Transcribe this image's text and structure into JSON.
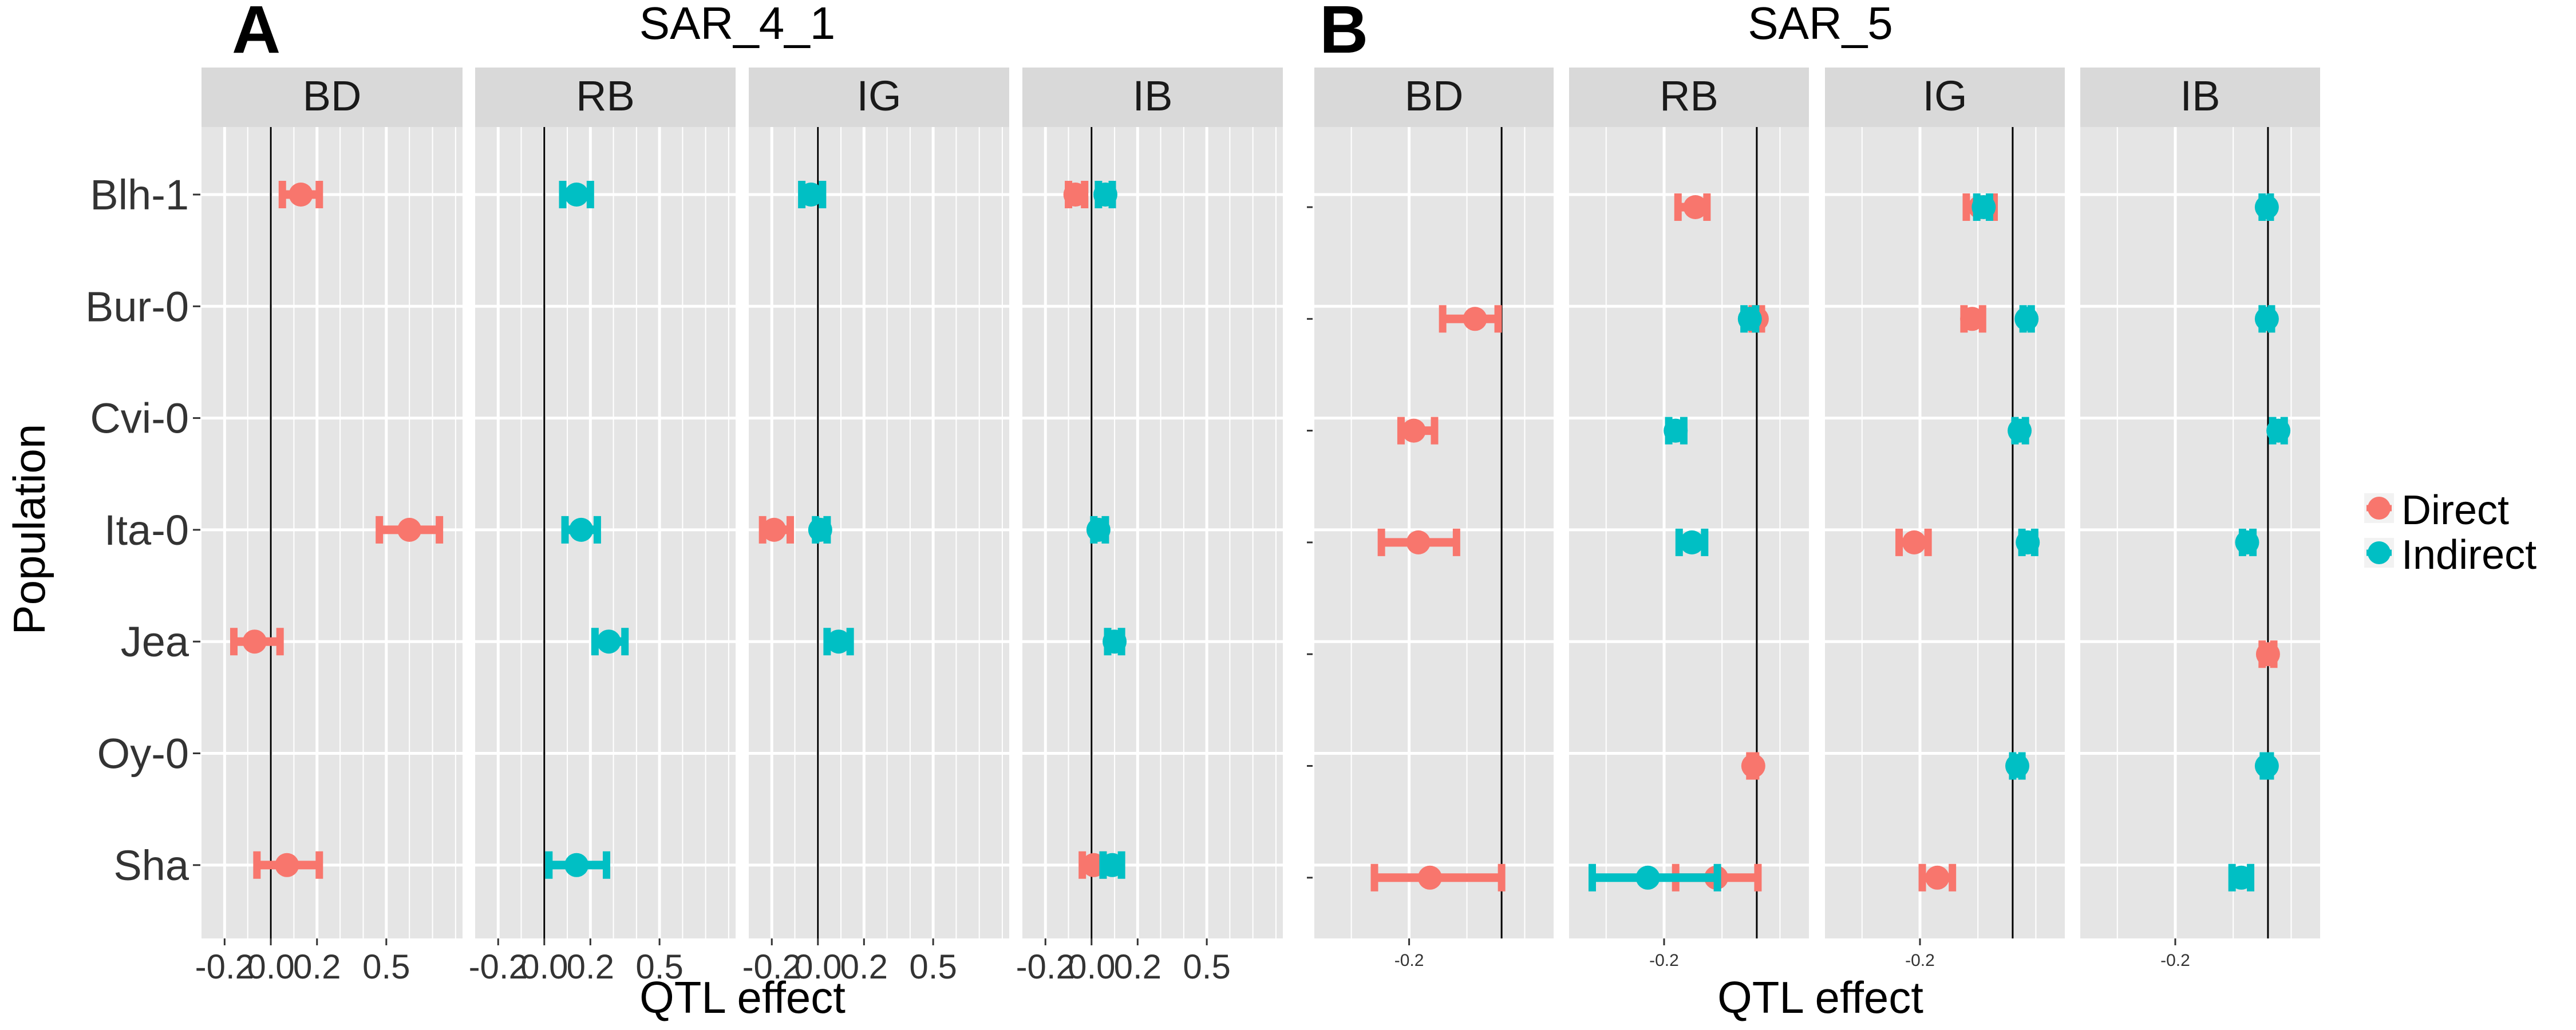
{
  "figure": {
    "ylabel": "Population",
    "populations": [
      "Blh-1",
      "Bur-0",
      "Cvi-0",
      "Ita-0",
      "Jea",
      "Oy-0",
      "Sha"
    ],
    "legend": {
      "position": "right",
      "items": [
        {
          "label": "Direct",
          "color": "#F8766D"
        },
        {
          "label": "Indirect",
          "color": "#00BFC4"
        }
      ]
    },
    "colors": {
      "panel_bg": "#E5E5E5",
      "strip_bg": "#D9D9D9",
      "grid": "#FFFFFF",
      "zero_line": "#000000"
    }
  },
  "chart_data": [
    {
      "type": "scatter",
      "letter": "A",
      "title": "SAR_4_1",
      "xlabel": "QTL effect",
      "xlim": [
        -0.3,
        0.83
      ],
      "xticks": [
        -0.2,
        0.0,
        0.2,
        0.5
      ],
      "xtick_labels": [
        "-0.2",
        "0.0",
        "0.2",
        "0.5"
      ],
      "facets": [
        {
          "name": "BD",
          "points": [
            {
              "population": "Blh-1",
              "type": "Direct",
              "value": 0.13,
              "low": 0.05,
              "high": 0.21
            },
            {
              "population": "Ita-0",
              "type": "Direct",
              "value": 0.6,
              "low": 0.47,
              "high": 0.73
            },
            {
              "population": "Jea",
              "type": "Direct",
              "value": -0.07,
              "low": -0.16,
              "high": 0.04
            },
            {
              "population": "Sha",
              "type": "Direct",
              "value": 0.07,
              "low": -0.06,
              "high": 0.21
            }
          ]
        },
        {
          "name": "RB",
          "points": [
            {
              "population": "Blh-1",
              "type": "Indirect",
              "value": 0.14,
              "low": 0.08,
              "high": 0.2
            },
            {
              "population": "Ita-0",
              "type": "Indirect",
              "value": 0.16,
              "low": 0.09,
              "high": 0.23
            },
            {
              "population": "Jea",
              "type": "Indirect",
              "value": 0.28,
              "low": 0.22,
              "high": 0.35
            },
            {
              "population": "Sha",
              "type": "Indirect",
              "value": 0.14,
              "low": 0.02,
              "high": 0.27
            }
          ]
        },
        {
          "name": "IG",
          "points": [
            {
              "population": "Blh-1",
              "type": "Indirect",
              "value": -0.03,
              "low": -0.07,
              "high": 0.02
            },
            {
              "population": "Ita-0",
              "type": "Direct",
              "value": -0.19,
              "low": -0.24,
              "high": -0.12
            },
            {
              "population": "Ita-0",
              "type": "Indirect",
              "value": 0.01,
              "low": -0.01,
              "high": 0.04
            },
            {
              "population": "Jea",
              "type": "Indirect",
              "value": 0.09,
              "low": 0.04,
              "high": 0.14
            }
          ]
        },
        {
          "name": "IB",
          "points": [
            {
              "population": "Blh-1",
              "type": "Direct",
              "value": -0.07,
              "low": -0.1,
              "high": -0.03
            },
            {
              "population": "Blh-1",
              "type": "Indirect",
              "value": 0.06,
              "low": 0.03,
              "high": 0.09
            },
            {
              "population": "Ita-0",
              "type": "Indirect",
              "value": 0.03,
              "low": 0.01,
              "high": 0.06
            },
            {
              "population": "Jea",
              "type": "Indirect",
              "value": 0.1,
              "low": 0.07,
              "high": 0.13
            },
            {
              "population": "Sha",
              "type": "Direct",
              "value": 0.01,
              "low": -0.04,
              "high": 0.05
            },
            {
              "population": "Sha",
              "type": "Indirect",
              "value": 0.09,
              "low": 0.05,
              "high": 0.13
            }
          ]
        }
      ]
    },
    {
      "type": "scatter",
      "letter": "B",
      "title": "SAR_5",
      "xlabel": "QTL effect",
      "xlim": [
        -0.282,
        -0.075
      ],
      "xticks": [
        -0.2
      ],
      "xtick_labels": [
        "-0.2"
      ],
      "zero": -0.12,
      "facets": [
        {
          "name": "BD",
          "points": [
            {
              "population": "Bur-0",
              "type": "Direct",
              "value": -0.143,
              "low": -0.171,
              "high": -0.123
            },
            {
              "population": "Cvi-0",
              "type": "Direct",
              "value": -0.196,
              "low": -0.207,
              "high": -0.178
            },
            {
              "population": "Ita-0",
              "type": "Direct",
              "value": -0.192,
              "low": -0.224,
              "high": -0.159
            },
            {
              "population": "Sha",
              "type": "Direct",
              "value": -0.182,
              "low": -0.23,
              "high": -0.12
            }
          ]
        },
        {
          "name": "RB",
          "points": [
            {
              "population": "Blh-1",
              "type": "Direct",
              "value": -0.173,
              "low": -0.188,
              "high": -0.163
            },
            {
              "population": "Bur-0",
              "type": "Direct",
              "value": -0.12,
              "low": -0.124,
              "high": -0.116
            },
            {
              "population": "Bur-0",
              "type": "Indirect",
              "value": -0.126,
              "low": -0.131,
              "high": -0.121
            },
            {
              "population": "Cvi-0",
              "type": "Indirect",
              "value": -0.19,
              "low": -0.196,
              "high": -0.183
            },
            {
              "population": "Ita-0",
              "type": "Indirect",
              "value": -0.176,
              "low": -0.187,
              "high": -0.165
            },
            {
              "population": "Oy-0",
              "type": "Direct",
              "value": -0.123,
              "low": -0.126,
              "high": -0.121
            },
            {
              "population": "Sha",
              "type": "Direct",
              "value": -0.155,
              "low": -0.19,
              "high": -0.119
            },
            {
              "population": "Sha",
              "type": "Indirect",
              "value": -0.214,
              "low": -0.262,
              "high": -0.154
            }
          ]
        },
        {
          "name": "IG",
          "points": [
            {
              "population": "Blh-1",
              "type": "Direct",
              "value": -0.148,
              "low": -0.16,
              "high": -0.136
            },
            {
              "population": "Blh-1",
              "type": "Indirect",
              "value": -0.145,
              "low": -0.151,
              "high": -0.14
            },
            {
              "population": "Bur-0",
              "type": "Direct",
              "value": -0.155,
              "low": -0.162,
              "high": -0.146
            },
            {
              "population": "Bur-0",
              "type": "Indirect",
              "value": -0.108,
              "low": -0.111,
              "high": -0.104
            },
            {
              "population": "Cvi-0",
              "type": "Indirect",
              "value": -0.114,
              "low": -0.118,
              "high": -0.109
            },
            {
              "population": "Ita-0",
              "type": "Direct",
              "value": -0.205,
              "low": -0.218,
              "high": -0.193
            },
            {
              "population": "Ita-0",
              "type": "Indirect",
              "value": -0.107,
              "low": -0.112,
              "high": -0.101
            },
            {
              "population": "Oy-0",
              "type": "Indirect",
              "value": -0.116,
              "low": -0.12,
              "high": -0.112
            },
            {
              "population": "Sha",
              "type": "Direct",
              "value": -0.185,
              "low": -0.198,
              "high": -0.172
            }
          ]
        },
        {
          "name": "IB",
          "points": [
            {
              "population": "Blh-1",
              "type": "Indirect",
              "value": -0.121,
              "low": -0.125,
              "high": -0.118
            },
            {
              "population": "Bur-0",
              "type": "Indirect",
              "value": -0.121,
              "low": -0.125,
              "high": -0.117
            },
            {
              "population": "Cvi-0",
              "type": "Indirect",
              "value": -0.111,
              "low": -0.116,
              "high": -0.106
            },
            {
              "population": "Ita-0",
              "type": "Indirect",
              "value": -0.138,
              "low": -0.142,
              "high": -0.133
            },
            {
              "population": "Jea",
              "type": "Direct",
              "value": -0.12,
              "low": -0.125,
              "high": -0.115
            },
            {
              "population": "Oy-0",
              "type": "Indirect",
              "value": -0.121,
              "low": -0.124,
              "high": -0.118
            },
            {
              "population": "Sha",
              "type": "Indirect",
              "value": -0.143,
              "low": -0.151,
              "high": -0.135
            }
          ]
        }
      ]
    }
  ]
}
